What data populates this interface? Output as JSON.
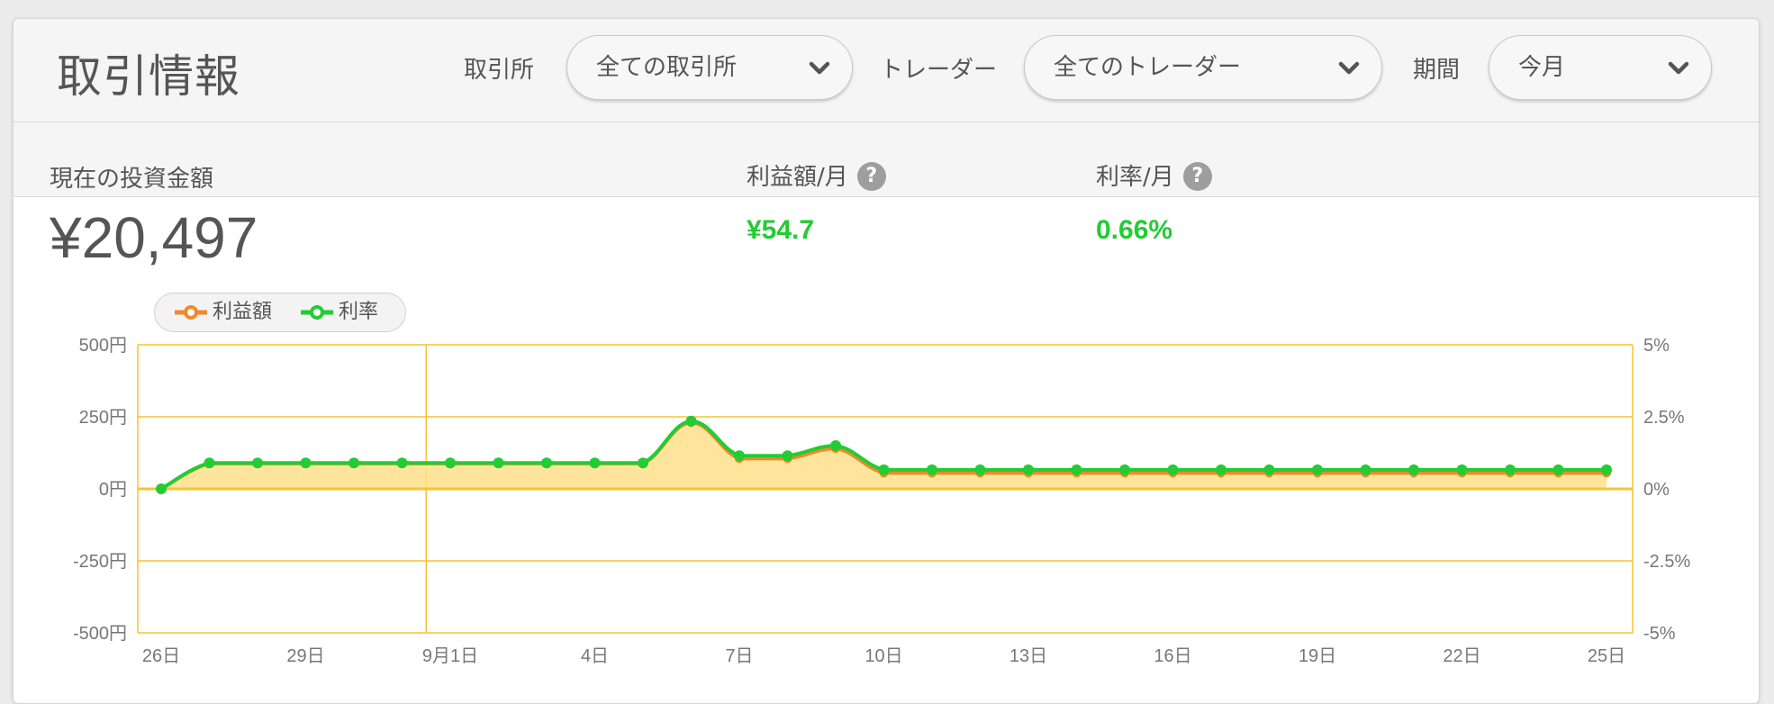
{
  "header": {
    "title": "取引情報",
    "filters": [
      {
        "label": "取引所",
        "value": "全ての取引所"
      },
      {
        "label": "トレーダー",
        "value": "全てのトレーダー"
      },
      {
        "label": "期間",
        "value": "今月"
      }
    ]
  },
  "stats": {
    "investment": {
      "label": "現在の投資金額",
      "value": "¥20,497"
    },
    "profit": {
      "label": "利益額/月",
      "value": "¥54.7"
    },
    "rate": {
      "label": "利率/月",
      "value": "0.66%"
    },
    "help_glyph": "?"
  },
  "colors": {
    "profit": "#f08a2c",
    "rate": "#22cc33",
    "area": "#ffe08a",
    "grid": "#f5c431"
  },
  "chart_data": {
    "type": "line",
    "legend": [
      {
        "name": "利益額",
        "color": "#f08a2c"
      },
      {
        "name": "利率",
        "color": "#22cc33"
      }
    ],
    "x_tick_labels": [
      "26日",
      "29日",
      "9月1日",
      "4日",
      "7日",
      "10日",
      "13日",
      "16日",
      "19日",
      "22日",
      "25日"
    ],
    "x_tick_index": [
      0,
      3,
      6,
      9,
      12,
      15,
      18,
      21,
      24,
      27,
      30
    ],
    "y_left": {
      "ticks": [
        500,
        250,
        0,
        -250,
        -500
      ],
      "labels": [
        "500円",
        "250円",
        "0円",
        "-250円",
        "-500円"
      ],
      "range": [
        -500,
        500
      ]
    },
    "y_right": {
      "ticks": [
        5,
        2.5,
        0,
        -2.5,
        -5
      ],
      "labels": [
        "5%",
        "2.5%",
        "0%",
        "-2.5%",
        "-5%"
      ],
      "range": [
        -5,
        5
      ]
    },
    "series": [
      {
        "name": "利益額",
        "axis": "left",
        "values": [
          0,
          88,
          88,
          88,
          88,
          88,
          88,
          88,
          88,
          88,
          88,
          230,
          105,
          105,
          140,
          55,
          55,
          55,
          55,
          55,
          55,
          55,
          55,
          55,
          55,
          55,
          55,
          55,
          55,
          55,
          55
        ]
      },
      {
        "name": "利率",
        "axis": "right",
        "values": [
          0,
          0.9,
          0.9,
          0.9,
          0.9,
          0.9,
          0.9,
          0.9,
          0.9,
          0.9,
          0.9,
          2.35,
          1.15,
          1.15,
          1.5,
          0.66,
          0.66,
          0.66,
          0.66,
          0.66,
          0.66,
          0.66,
          0.66,
          0.66,
          0.66,
          0.66,
          0.66,
          0.66,
          0.66,
          0.66,
          0.66
        ]
      }
    ]
  }
}
